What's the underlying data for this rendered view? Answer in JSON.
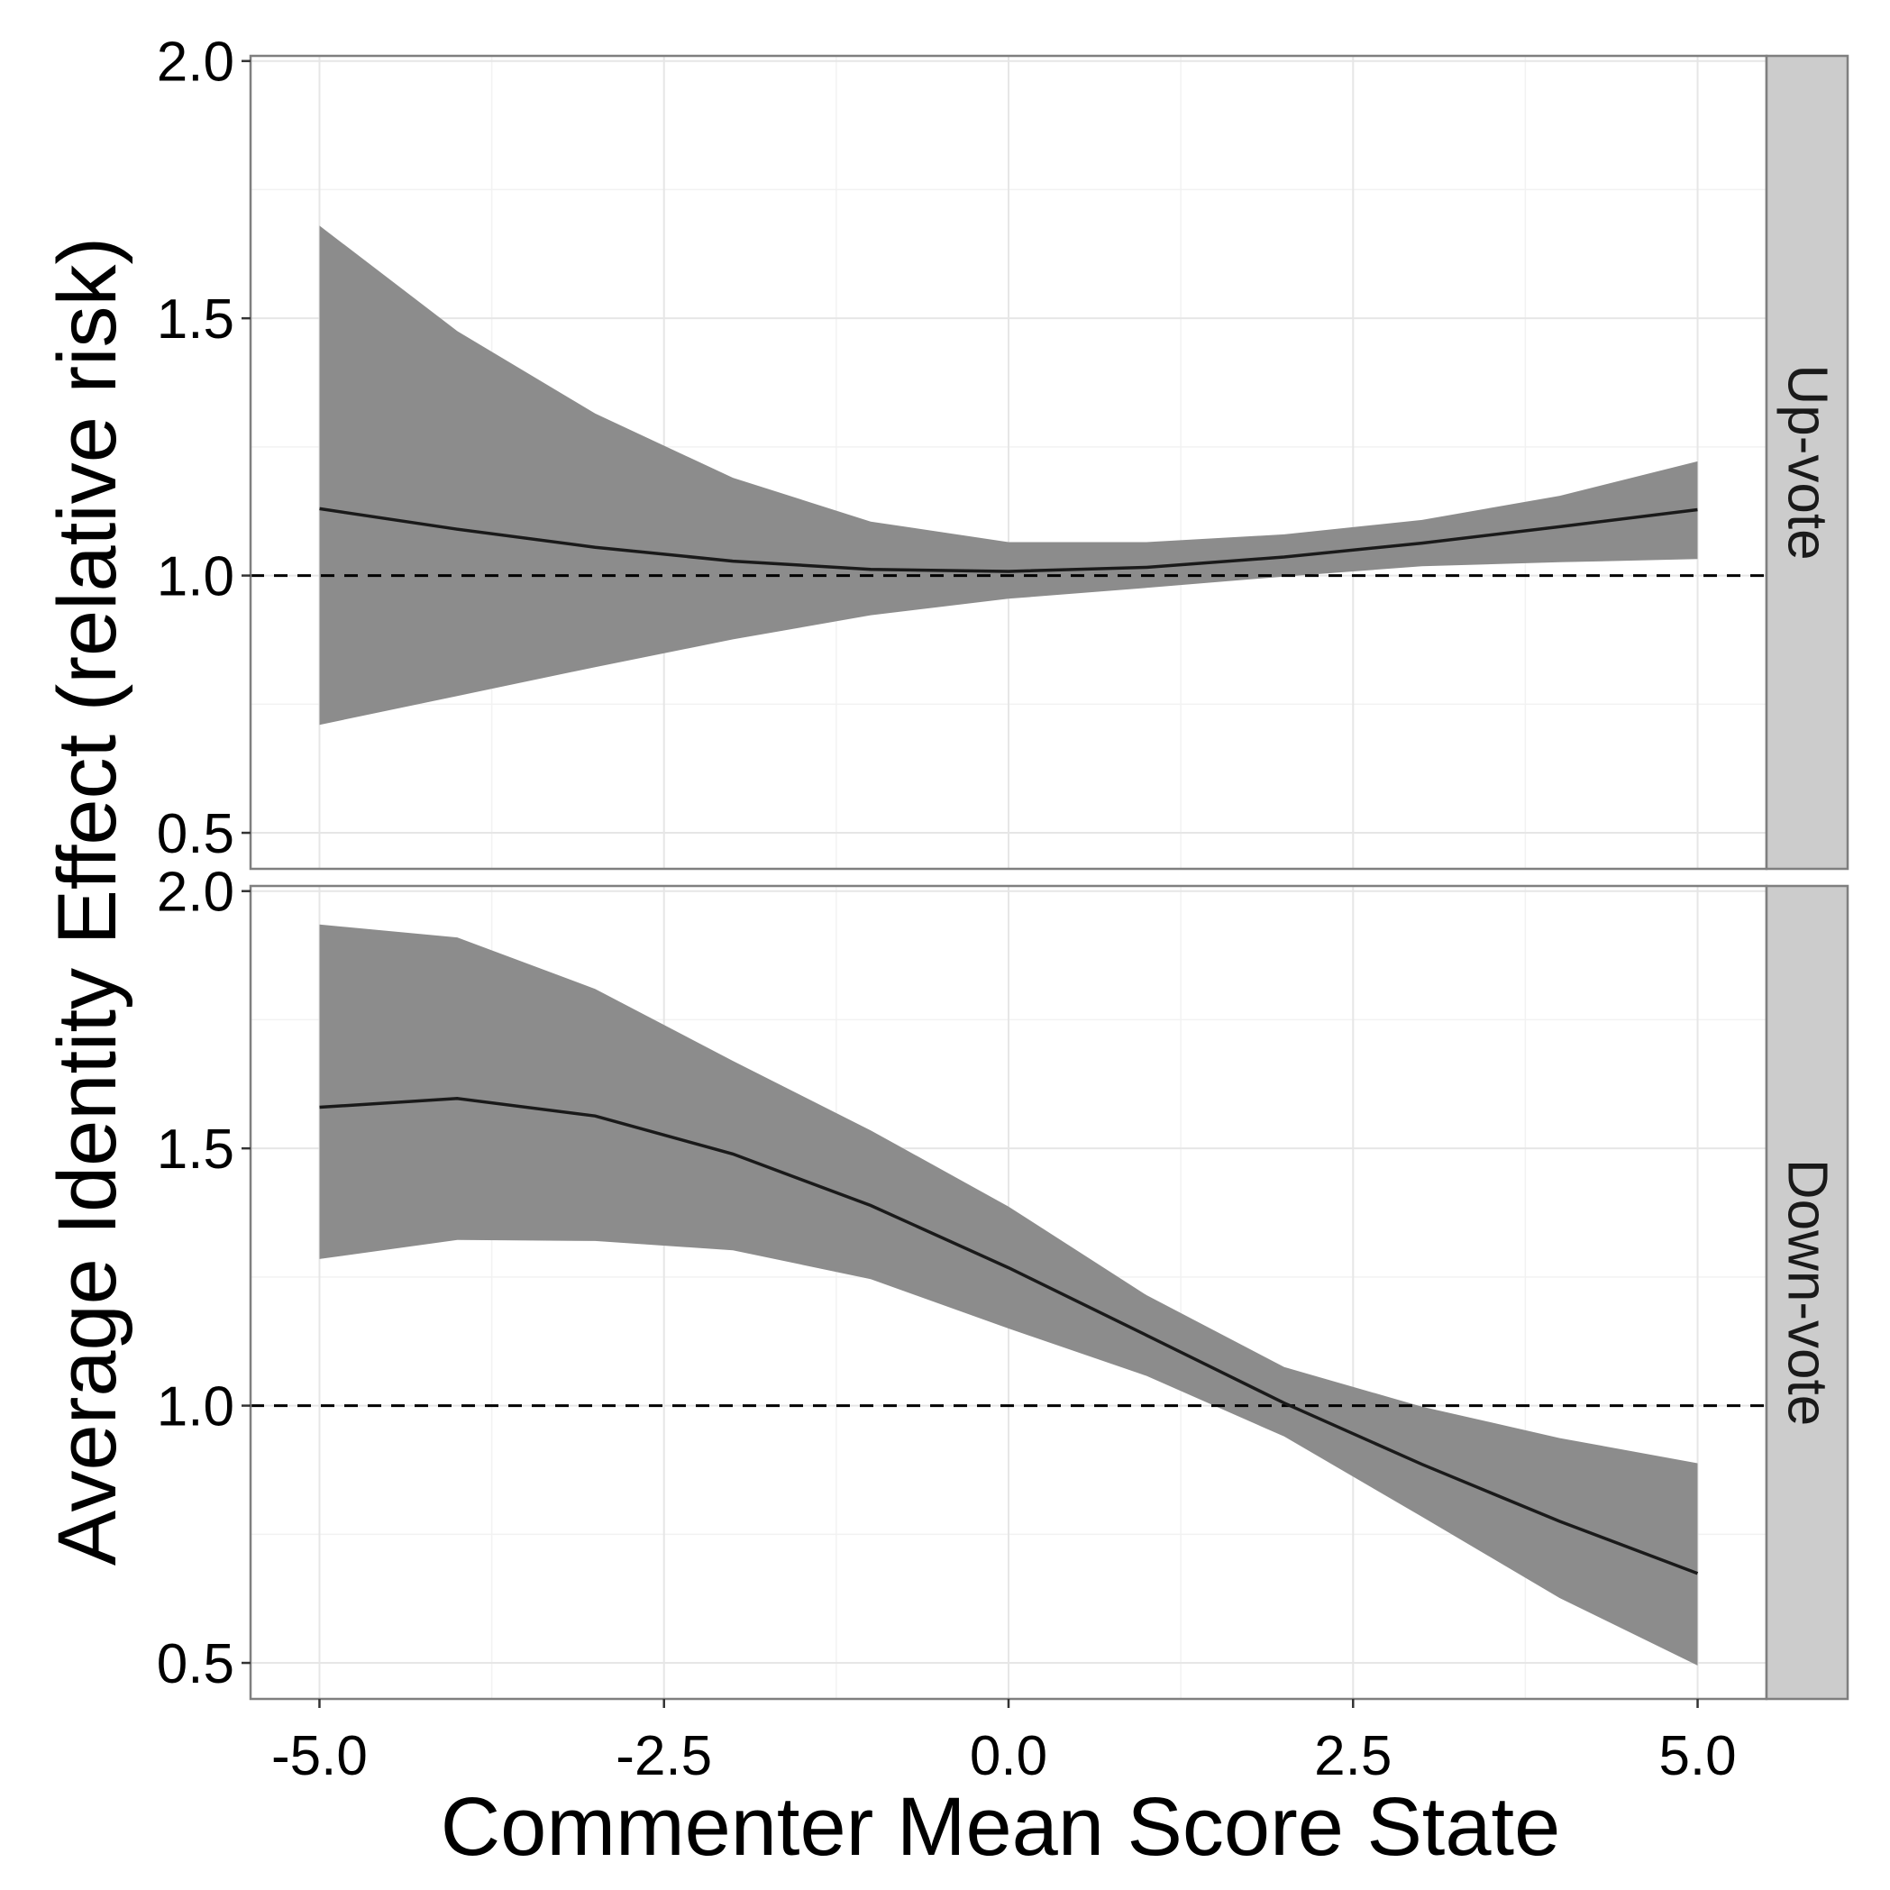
{
  "chart_data": {
    "type": "area",
    "xlabel": "Commenter Mean Score State",
    "ylabel": "Average Identity Effect (relative risk)",
    "x_ticks": [
      "-5.0",
      "-2.5",
      "0.0",
      "2.5",
      "5.0"
    ],
    "y_ticks": [
      "0.5",
      "1.0",
      "1.5",
      "2.0"
    ],
    "xlim": [
      -5.5,
      5.5
    ],
    "ylim": [
      0.43,
      2.01
    ],
    "reference_line_y": 1.0,
    "grid": true,
    "band_color": "#8c8c8c",
    "line_color": "#1a1a1a",
    "panel_background": "#ffffff",
    "strip_color": "#cccccc",
    "panels": [
      {
        "strip_label": "Up-vote",
        "x": [
          -5,
          -4,
          -3,
          -2,
          -1,
          0,
          1,
          2,
          3,
          4,
          5
        ],
        "estimate": [
          1.13,
          1.09,
          1.055,
          1.028,
          1.012,
          1.008,
          1.016,
          1.036,
          1.063,
          1.095,
          1.128
        ],
        "lower": [
          0.71,
          0.766,
          0.822,
          0.876,
          0.923,
          0.955,
          0.976,
          0.998,
          1.018,
          1.026,
          1.032
        ],
        "upper": [
          1.68,
          1.475,
          1.315,
          1.19,
          1.105,
          1.065,
          1.065,
          1.08,
          1.108,
          1.155,
          1.222
        ]
      },
      {
        "strip_label": "Down-vote",
        "x": [
          -5,
          -4,
          -3,
          -2,
          -1,
          0,
          1,
          2,
          3,
          4,
          5
        ],
        "estimate": [
          1.58,
          1.597,
          1.563,
          1.489,
          1.389,
          1.268,
          1.137,
          1.005,
          0.886,
          0.775,
          0.674
        ],
        "lower": [
          1.285,
          1.322,
          1.32,
          1.302,
          1.246,
          1.15,
          1.058,
          0.94,
          0.784,
          0.626,
          0.495
        ],
        "upper": [
          1.935,
          1.91,
          1.81,
          1.67,
          1.535,
          1.387,
          1.215,
          1.075,
          0.998,
          0.937,
          0.888
        ]
      }
    ]
  }
}
